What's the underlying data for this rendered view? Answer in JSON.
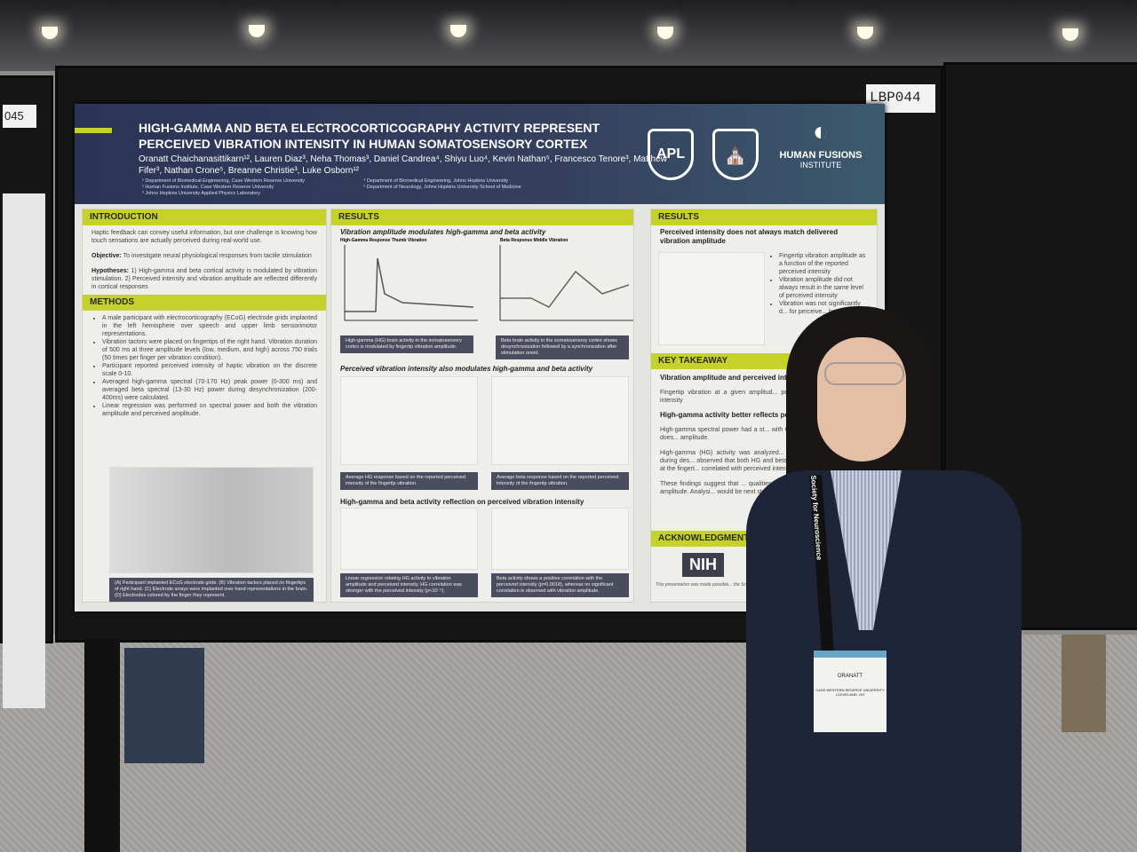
{
  "boards": {
    "left_number": "045",
    "right_number": "LBP044"
  },
  "poster": {
    "title": "HIGH-GAMMA AND BETA ELECTROCORTICOGRAPHY ACTIVITY REPRESENT PERCEIVED VIBRATION INTENSITY IN HUMAN SOMATOSENSORY CORTEX",
    "authors": "Oranatt Chaichanasittikarn¹², Lauren Diaz³, Neha Thomas³, Daniel Candrea⁴, Shiyu Luo⁴, Kevin Nathan⁵, Francesco Tenore³, Matthew Fifer³, Nathan Crone⁵, Breanne Christie³, Luke Osborn¹²",
    "affiliations": [
      "¹ Department of Biomedical Engineering, Case Western Reserve University",
      "² Human Fusions Institute, Case Western Reserve University",
      "³ Johns Hopkins University Applied Physics Laboratory",
      "⁴ Department of Biomedical Engineering, Johns Hopkins University",
      "⁵ Department of Neurology, Johns Hopkins University School of Medicine"
    ],
    "logos": {
      "apl": "APL",
      "hfi": "HUMAN FUSIONS",
      "hfi_sub": "INSTITUTE"
    },
    "intro": {
      "heading": "INTRODUCTION",
      "text": "Haptic feedback can convey useful information, but one challenge is knowing how touch sensations are actually perceived during real-world use.",
      "objective_label": "Objective:",
      "objective": " To investigate neural physiological responses from tactile stimulation",
      "hyp_label": "Hypotheses:",
      "hyp": " 1) High-gamma and beta cortical activity is modulated by vibration stimulation. 2) Perceived intensity and vibration amplitude are reflected differently in cortical responses"
    },
    "methods": {
      "heading": "METHODS",
      "bullets": [
        "A male participant with electrocorticography (ECoG) electrode grids implanted in the left hemisphere over speech and upper limb sensorimotor representations.",
        "Vibration tactors were placed on fingertips of the right hand. Vibration duration of 500 ms at three amplitude levels (low, medium, and high) across 750 trials (50 times per finger per vibration condition).",
        "Participant reported perceived intensity of haptic vibration on the discrete scale 0-10.",
        "Averaged high-gamma spectral (70-170 Hz) peak power (0-300 ms) and averaged beta spectral (13-30 Hz) power during desynchronization (200-400ms) were calculated.",
        "Linear regression was performed on spectral power and both the vibration amplitude and perceived amplitude."
      ],
      "caption": "(A) Participant implanted ECoG electrode grids. (B) Vibration tactors placed on fingertips of right hand. (C) Electrode arrays were implanted over hand representations in the brain. (D) Electrodes colored by the finger they represent."
    },
    "results_mid": {
      "heading": "RESULTS",
      "sub1": "Vibration amplitude modulates high-gamma and beta activity",
      "fig1": "High-Gamma Response Thumb Vibration",
      "fig2": "Beta Response Middle Vibration",
      "cap1": "High-gamma (HG) brain activity in the somatosensory cortex is modulated by fingertip vibration amplitude.",
      "cap2": "Beta brain activity in the somatosensory cortex shows desynchronization followed by a synchronization after stimulation onset.",
      "sub2": "Perceived vibration intensity also modulates high-gamma and beta activity",
      "cap3": "Average HG response based on the reported perceived intensity of the fingertip vibration.",
      "cap4": "Average beta response based on the reported perceived intensity of the fingertip vibration.",
      "sub3": "High-gamma and beta activity reflection on perceived vibration intensity",
      "cap5": "Linear regression relating HG activity to vibration amplitude and perceived intensity. HG correlation was stronger with the perceived intensity (p<10⁻⁵).",
      "cap6": "Beta activity shows a positive correlation with the perceived intensity (p=0.0018), whereas no significant correlation is observed with vibration amplitude."
    },
    "results_right": {
      "heading": "RESULTS",
      "sub": "Perceived intensity does not always match delivered vibration amplitude",
      "bullets": [
        "Fingertip vibration amplitude as a function of the reported perceived intensity",
        "Vibration amplitude did not always result in the same level of perceived intensity",
        "Vibration was not significantly d... for perceive... between 3..."
      ]
    },
    "takeaway": {
      "heading": "KEY TAKEAWAY",
      "h1": "Vibration amplitude and perceived int... always the same",
      "t1": "Fingertip vibration at a given amplitud... perceived as being the same intensity",
      "h2": "High-gamma activity better reflects pe...",
      "t2": "High-gamma spectral power had a st... with the perceived intensity than it does... amplitude.",
      "t3": "High-gamma (HG) activity was analyzed... Beta activity was assessed during des... observed that both HG and beta activity... vibration amplitude at the fingert... correlated with perceived intensity",
      "t4": "These findings suggest that ... qualities of perceived haptic ... stimulation amplitude. Analysi... would be next step of this resea..."
    },
    "ack": {
      "heading": "ACKNOWLEDGMENTS",
      "nih": "NIH",
      "note": "This presentation was made possible... the School of Graduate Studies..."
    }
  },
  "badge": {
    "name": "ORANATT",
    "org": "CASE WESTERN RESERVE UNIVERSITY",
    "city": "CLEVELAND, OH",
    "lanyard": "Society for Neuroscience"
  }
}
